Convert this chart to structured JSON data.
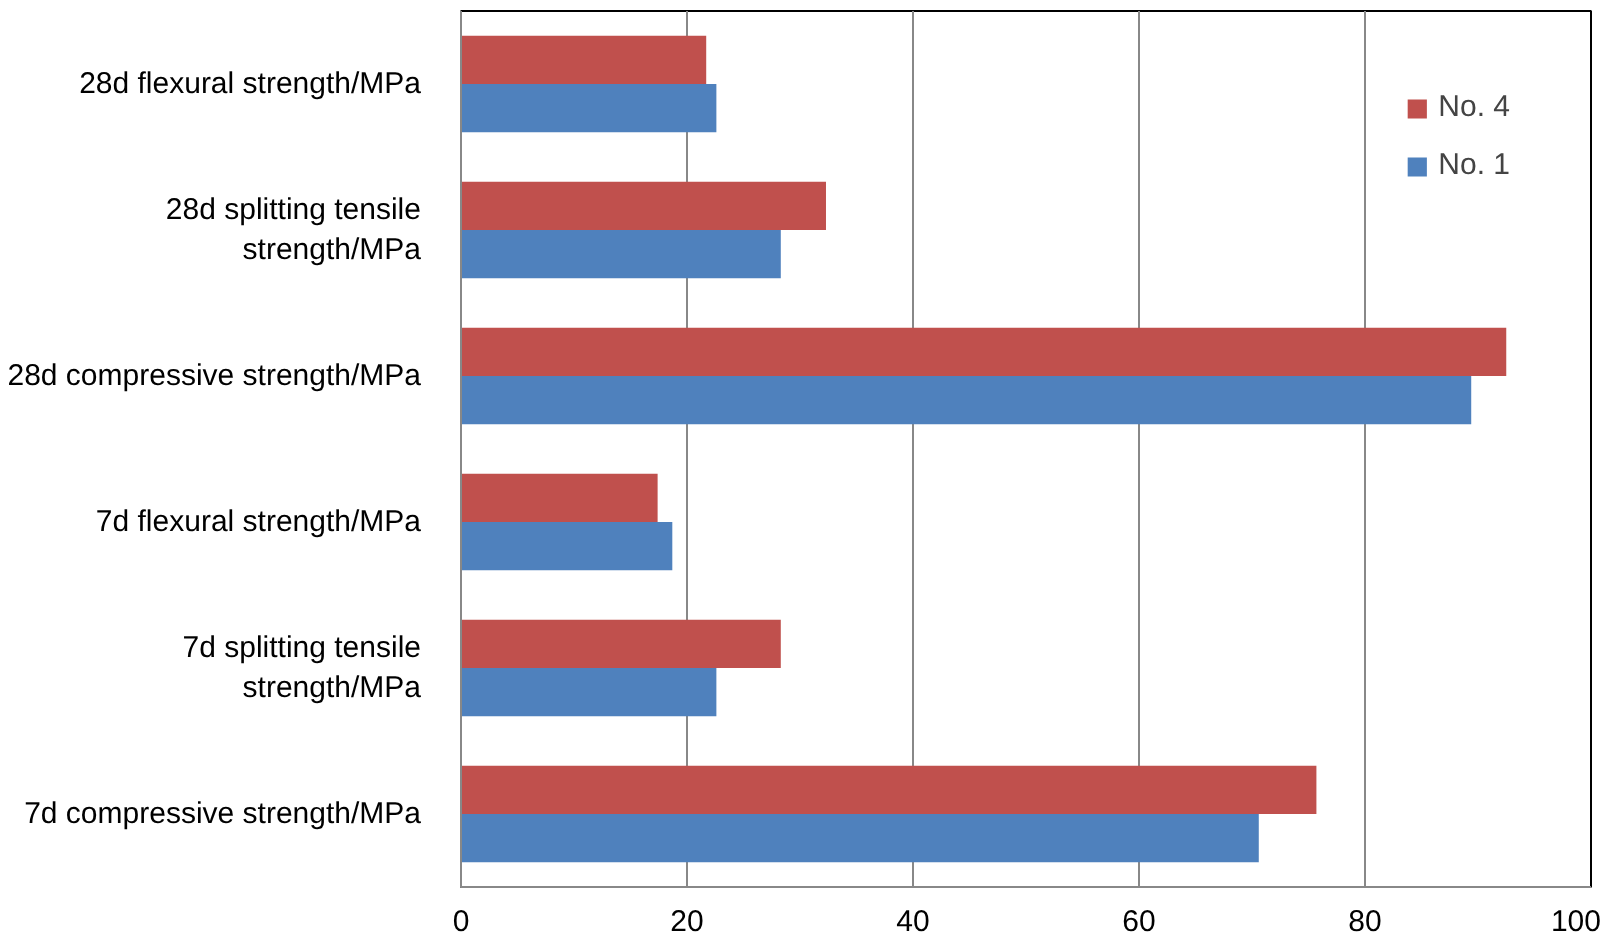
{
  "chart_data": {
    "type": "bar",
    "orientation": "horizontal",
    "categories": [
      "28d flexural strength/MPa",
      "28d splitting tensile strength/MPa",
      "28d compressive strength/MPa",
      "7d flexural strength/MPa",
      "7d splitting tensile strength/MPa",
      "7d compressive strength/MPa"
    ],
    "series": [
      {
        "name": "No. 4",
        "color": "#c0504d",
        "values": [
          21.7,
          32.3,
          92.5,
          17.4,
          28.3,
          75.7
        ]
      },
      {
        "name": "No. 1",
        "color": "#4f81bd",
        "values": [
          22.6,
          28.3,
          89.4,
          18.7,
          22.6,
          70.6
        ]
      }
    ],
    "xlim": [
      0,
      100
    ],
    "xticks": [
      0,
      20,
      40,
      60,
      80,
      100
    ],
    "grid": "x",
    "legend": "top right"
  }
}
